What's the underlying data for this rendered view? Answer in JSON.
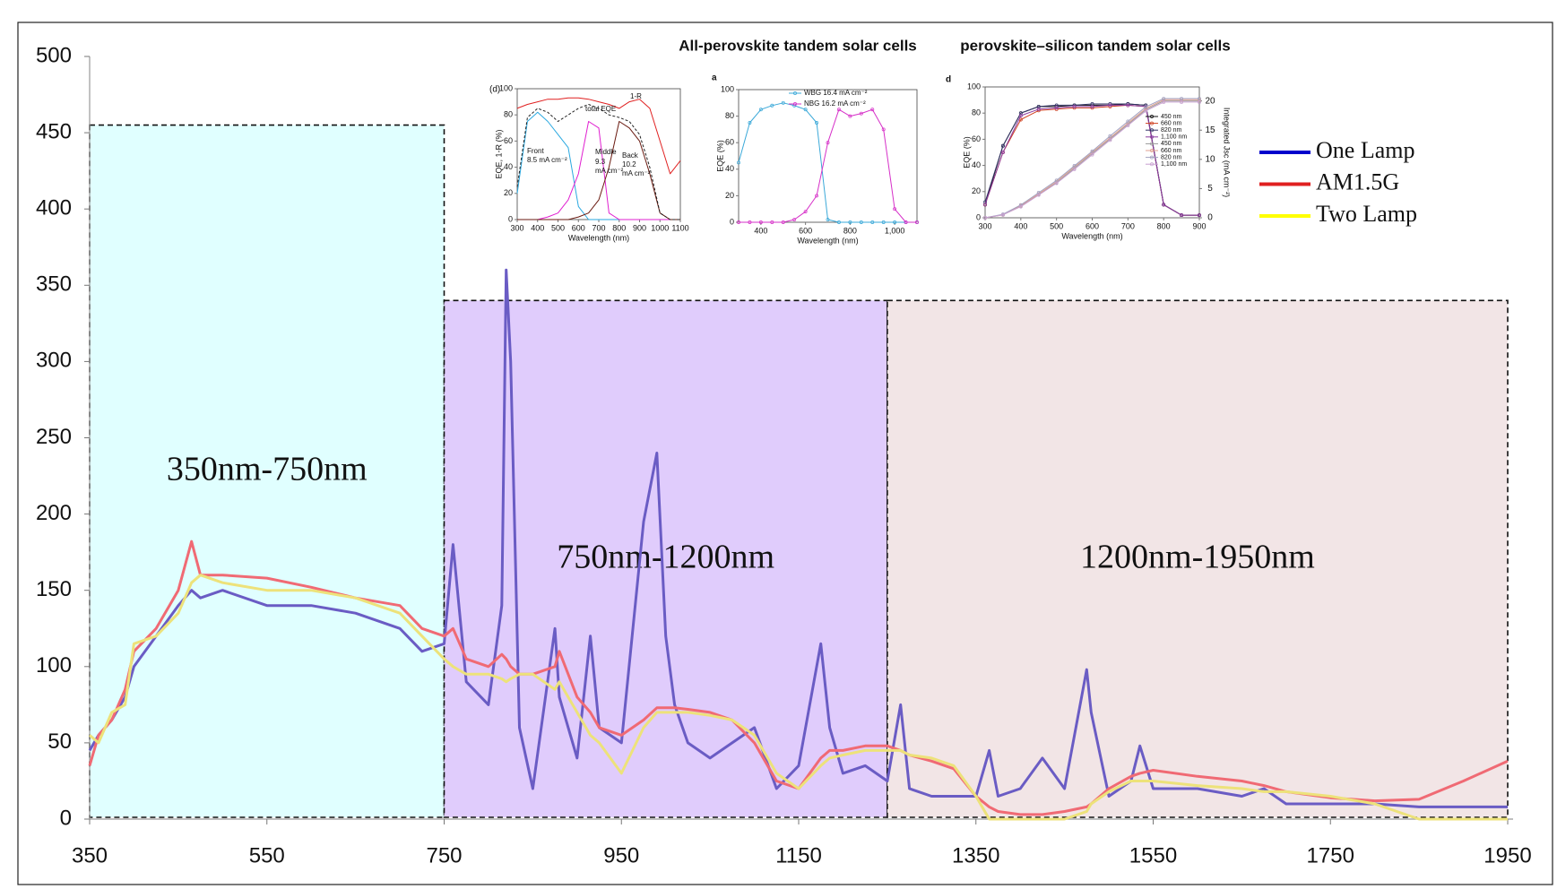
{
  "chart_data": [
    {
      "type": "line",
      "x": [
        350,
        360,
        375,
        390,
        400,
        425,
        450,
        465,
        475,
        500,
        550,
        600,
        650,
        700,
        725,
        750,
        760,
        775,
        800,
        815,
        820,
        825,
        835,
        850,
        875,
        880,
        900,
        915,
        925,
        950,
        975,
        990,
        1000,
        1010,
        1025,
        1050,
        1075,
        1100,
        1125,
        1150,
        1175,
        1185,
        1200,
        1225,
        1250,
        1265,
        1275,
        1300,
        1325,
        1350,
        1365,
        1375,
        1400,
        1425,
        1450,
        1475,
        1480,
        1500,
        1525,
        1535,
        1550,
        1600,
        1650,
        1675,
        1700,
        1750,
        1800,
        1850,
        1900,
        1950
      ],
      "series": [
        {
          "name": "One Lamp",
          "color": "#6a5cc4",
          "legend_color": "#0000cc",
          "values": [
            45,
            55,
            65,
            80,
            100,
            120,
            140,
            150,
            145,
            150,
            140,
            140,
            135,
            125,
            110,
            115,
            180,
            90,
            75,
            140,
            360,
            300,
            60,
            20,
            125,
            80,
            40,
            120,
            60,
            50,
            195,
            240,
            120,
            75,
            50,
            40,
            50,
            60,
            20,
            35,
            115,
            60,
            30,
            35,
            25,
            75,
            20,
            15,
            15,
            15,
            45,
            15,
            20,
            40,
            20,
            98,
            70,
            15,
            25,
            48,
            20,
            20,
            15,
            20,
            10,
            10,
            10,
            8,
            8,
            8
          ]
        },
        {
          "name": "AM1.5G",
          "color": "#f06a74",
          "legend_color": "#e02020",
          "values": [
            35,
            55,
            65,
            85,
            110,
            125,
            150,
            182,
            160,
            160,
            158,
            152,
            145,
            140,
            125,
            120,
            125,
            105,
            100,
            108,
            105,
            100,
            95,
            95,
            100,
            110,
            80,
            70,
            60,
            55,
            65,
            73,
            73,
            73,
            72,
            70,
            65,
            50,
            25,
            20,
            40,
            45,
            45,
            48,
            48,
            45,
            42,
            38,
            33,
            15,
            8,
            5,
            3,
            3,
            5,
            8,
            10,
            20,
            28,
            30,
            32,
            28,
            25,
            22,
            18,
            14,
            12,
            13,
            25,
            38
          ]
        },
        {
          "name": "Two Lamp",
          "color": "#ede27a",
          "legend_color": "#ffff00",
          "values": [
            55,
            50,
            70,
            75,
            115,
            120,
            135,
            155,
            160,
            155,
            150,
            150,
            145,
            135,
            120,
            105,
            100,
            95,
            95,
            92,
            90,
            92,
            95,
            95,
            85,
            90,
            70,
            55,
            50,
            30,
            60,
            70,
            70,
            70,
            70,
            68,
            65,
            55,
            30,
            20,
            35,
            40,
            42,
            45,
            45,
            45,
            42,
            40,
            35,
            15,
            0,
            0,
            0,
            0,
            0,
            5,
            10,
            18,
            25,
            25,
            25,
            22,
            20,
            18,
            18,
            15,
            10,
            0,
            0,
            0
          ]
        }
      ],
      "regions": [
        {
          "label": "350nm-750nm",
          "x": [
            350,
            750
          ],
          "top": 455,
          "color": "#e0ffff"
        },
        {
          "label": "750nm-1200nm",
          "x": [
            750,
            1250
          ],
          "top": 340,
          "color": "#e0ccfc"
        },
        {
          "label": "1200nm-1950nm",
          "x": [
            1250,
            1950
          ],
          "top": 340,
          "color": "#f2e5e6"
        }
      ],
      "xlim": [
        350,
        1950
      ],
      "xticks": [
        350,
        550,
        750,
        950,
        1150,
        1350,
        1550,
        1750,
        1950
      ],
      "ylim": [
        0,
        500
      ],
      "yticks": [
        0,
        50,
        100,
        150,
        200,
        250,
        300,
        350,
        400,
        450,
        500
      ],
      "legend": "right"
    },
    {
      "type": "line",
      "title": "All-perovskite tandem solar cells",
      "label": "(d)",
      "xlabel": "Wavelength (nm)",
      "ylabel": "EQE, 1-R (%)",
      "x": [
        300,
        350,
        400,
        450,
        500,
        550,
        600,
        650,
        700,
        750,
        800,
        850,
        900,
        950,
        1000,
        1050,
        1100
      ],
      "series": [
        {
          "color": "#29a8e0",
          "values": [
            20,
            75,
            82,
            75,
            65,
            55,
            10,
            0,
            0,
            0,
            0,
            0,
            0,
            0,
            0,
            0,
            0
          ]
        },
        {
          "color": "#e020d0",
          "values": [
            0,
            0,
            0,
            2,
            5,
            15,
            35,
            75,
            70,
            5,
            0,
            0,
            0,
            0,
            0,
            0,
            0
          ]
        },
        {
          "color": "#6a1a10",
          "values": [
            0,
            0,
            0,
            0,
            0,
            0,
            2,
            5,
            15,
            40,
            75,
            70,
            60,
            35,
            5,
            0,
            0
          ]
        },
        {
          "color": "#222222",
          "dash": true,
          "values": [
            25,
            78,
            85,
            82,
            75,
            80,
            85,
            88,
            85,
            80,
            78,
            75,
            65,
            40,
            5,
            0,
            0
          ]
        },
        {
          "color": "#e02020",
          "values": [
            85,
            88,
            90,
            92,
            92,
            93,
            93,
            92,
            90,
            88,
            85,
            90,
            92,
            85,
            60,
            35,
            45
          ]
        }
      ],
      "annotations": [
        "Front",
        "8.5 mA cm⁻²",
        "Middle",
        "9.3",
        "mA cm⁻²",
        "Back",
        "10.2",
        "mA cm⁻²",
        "total EQE",
        "1-R"
      ],
      "xlim": [
        300,
        1100
      ],
      "xticks": [
        300,
        400,
        500,
        600,
        700,
        800,
        900,
        1000,
        1100
      ],
      "ylim": [
        0,
        100
      ],
      "yticks": [
        0,
        20,
        40,
        60,
        80,
        100
      ]
    },
    {
      "type": "line",
      "label": "a",
      "markers": true,
      "xlabel": "Wavelength (nm)",
      "ylabel": "EQE (%)",
      "x": [
        300,
        350,
        400,
        450,
        500,
        550,
        600,
        650,
        700,
        750,
        800,
        850,
        900,
        950,
        1000,
        1050,
        1100
      ],
      "series": [
        {
          "name": "WBG  16.4 mA cm⁻²",
          "color": "#3aa8d8",
          "values": [
            45,
            75,
            85,
            88,
            90,
            88,
            85,
            75,
            2,
            0,
            0,
            0,
            0,
            0,
            0,
            0,
            0
          ]
        },
        {
          "name": "NBG  16.2 mA cm⁻²",
          "color": "#d630c8",
          "values": [
            0,
            0,
            0,
            0,
            0,
            2,
            8,
            20,
            60,
            85,
            80,
            82,
            85,
            70,
            10,
            0,
            0
          ]
        }
      ],
      "xlim": [
        300,
        1100
      ],
      "xticks": [
        400,
        600,
        800,
        {
          "value": 1000,
          "label": "1,000"
        }
      ],
      "ylim": [
        0,
        100
      ],
      "yticks": [
        0,
        20,
        40,
        60,
        80,
        100
      ],
      "legend": "upper center"
    },
    {
      "type": "line",
      "title": "perovskite–silicon tandem solar cells",
      "label": "d",
      "markers": true,
      "xlabel": "Wavelength (nm)",
      "ylabel": "EQE (%)",
      "y2label": "Integrated Jsc (mA cm⁻²)",
      "x": [
        300,
        350,
        400,
        450,
        500,
        550,
        600,
        650,
        700,
        750,
        800,
        850,
        900
      ],
      "series": [
        {
          "name": "450 nm",
          "color": "#111111",
          "values": [
            10,
            55,
            80,
            85,
            85,
            86,
            86,
            86,
            87,
            86,
            10,
            2,
            2
          ]
        },
        {
          "name": "660 nm",
          "color": "#d04020",
          "values": [
            10,
            50,
            75,
            82,
            83,
            84,
            84,
            85,
            86,
            85,
            10,
            2,
            2
          ]
        },
        {
          "name": "820 nm",
          "color": "#333366",
          "values": [
            12,
            55,
            80,
            85,
            86,
            86,
            87,
            87,
            87,
            86,
            10,
            2,
            2
          ]
        },
        {
          "name": "1,100 nm",
          "color": "#8a3aa0",
          "values": [
            10,
            50,
            78,
            83,
            84,
            85,
            85,
            86,
            86,
            85,
            10,
            2,
            2
          ]
        },
        {
          "name": "450 nm",
          "color": "#999999",
          "axis": "y2",
          "values": [
            0,
            0.5,
            2,
            4,
            6,
            8.5,
            11,
            13.5,
            16,
            18.5,
            20,
            20,
            20
          ]
        },
        {
          "name": "660 nm",
          "color": "#e0a090",
          "axis": "y2",
          "values": [
            0,
            0.5,
            2.1,
            4.1,
            6.2,
            8.7,
            11.2,
            13.7,
            16.2,
            18.7,
            20.2,
            20.2,
            20.2
          ]
        },
        {
          "name": "820 nm",
          "color": "#a0a0c0",
          "axis": "y2",
          "values": [
            0,
            0.6,
            2.2,
            4.3,
            6.4,
            8.9,
            11.4,
            14,
            16.5,
            19,
            20.4,
            20.4,
            20.4
          ]
        },
        {
          "name": "1,100 nm",
          "color": "#c8a0d0",
          "axis": "y2",
          "values": [
            0,
            0.5,
            1.9,
            3.9,
            5.9,
            8.3,
            10.8,
            13.3,
            15.8,
            18.3,
            19.8,
            19.8,
            19.8
          ]
        }
      ],
      "xlim": [
        300,
        900
      ],
      "xticks": [
        300,
        400,
        500,
        600,
        700,
        800,
        900
      ],
      "ylim": [
        0,
        100
      ],
      "yticks": [
        0,
        20,
        40,
        60,
        80,
        100
      ],
      "y2lim": [
        0,
        22.4
      ],
      "y2ticks": [
        0,
        5,
        10,
        15,
        20
      ],
      "legend": "upper right"
    }
  ]
}
